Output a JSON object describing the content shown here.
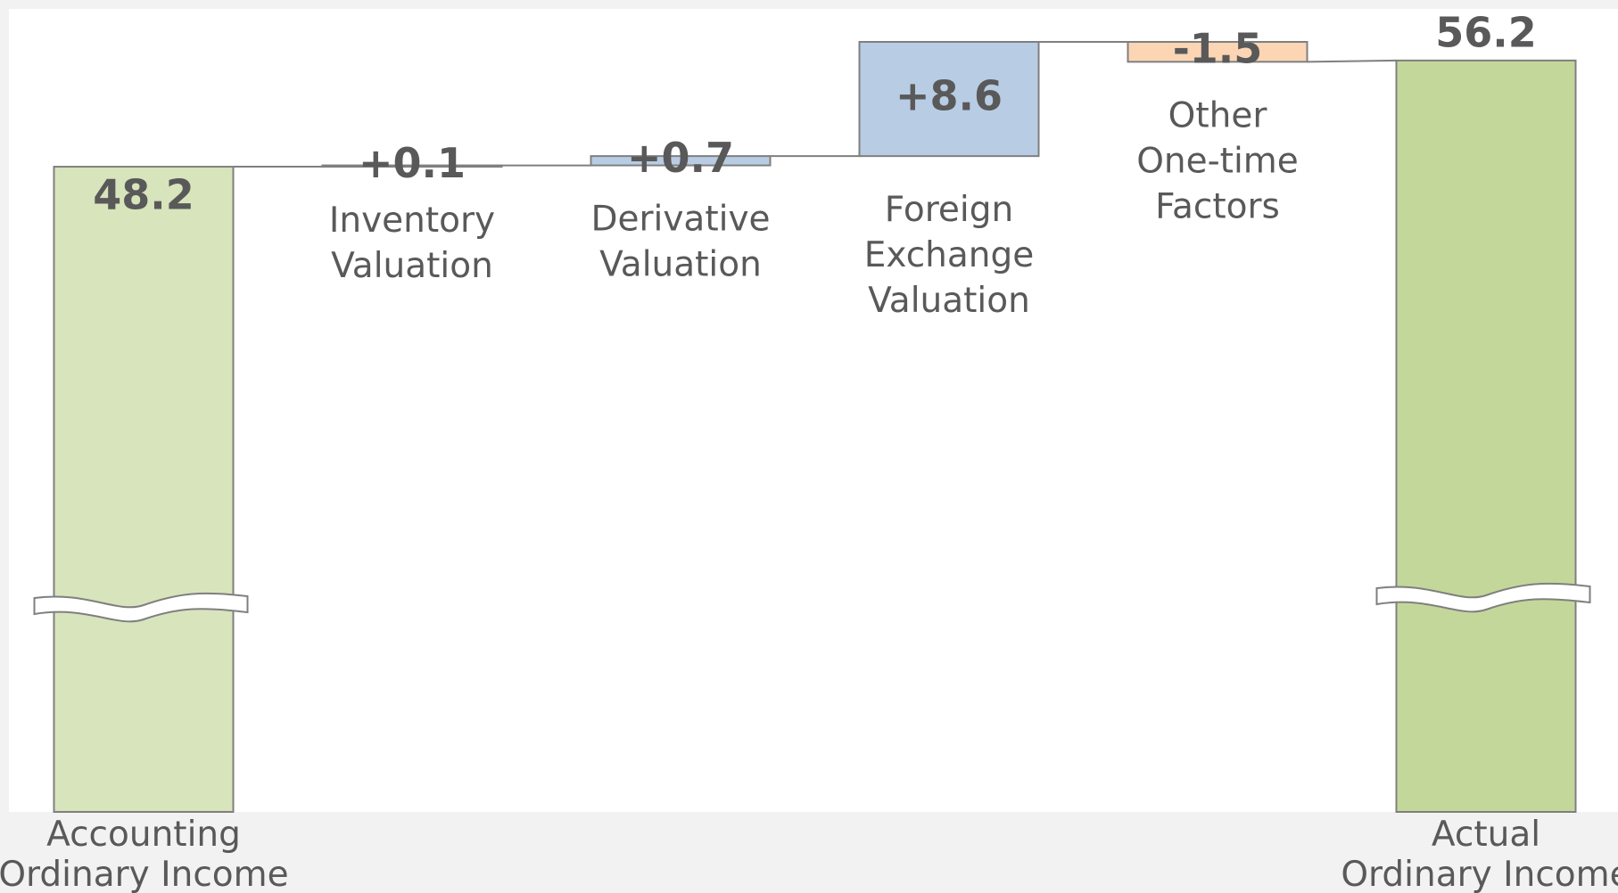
{
  "chart_data": {
    "type": "waterfall",
    "categories": [
      [
        "Accounting",
        "Ordinary Income"
      ],
      [
        "Inventory",
        "Valuation"
      ],
      [
        "Derivative",
        "Valuation"
      ],
      [
        "Foreign",
        "Exchange",
        "Valuation"
      ],
      [
        "Other",
        "One-time",
        "Factors"
      ],
      [
        "Actual",
        "Ordinary Income"
      ]
    ],
    "values": [
      48.2,
      0.1,
      0.7,
      8.6,
      -1.5,
      56.2
    ],
    "value_labels": [
      "48.2",
      "+0.1",
      "+0.7",
      "+8.6",
      "-1.5",
      "56.2"
    ],
    "measure": [
      "absolute",
      "relative",
      "relative",
      "relative",
      "relative",
      "total"
    ],
    "colors": [
      "#d8e4bc",
      "#b8cce4",
      "#b8cce4",
      "#b8cce4",
      "#fcd5b4",
      "#c4d79b"
    ],
    "axis_break": true
  }
}
